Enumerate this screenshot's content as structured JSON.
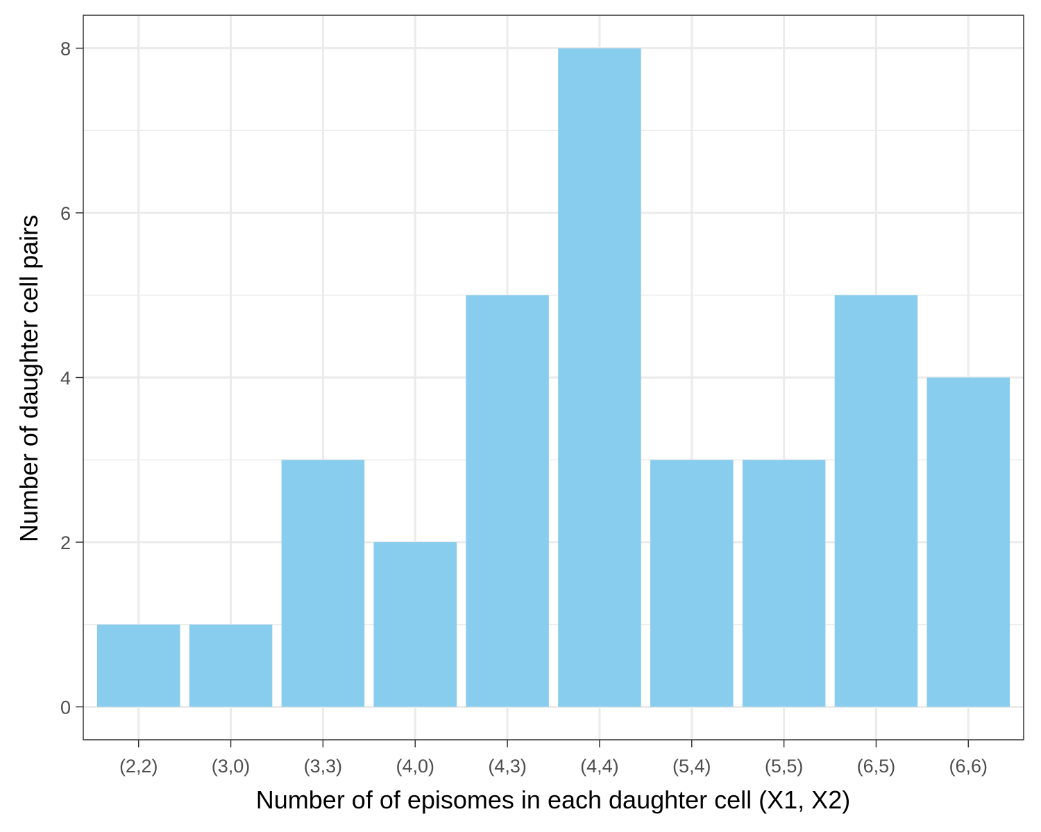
{
  "chart_data": {
    "type": "bar",
    "title": "",
    "xlabel": "Number of of episomes in each daughter cell (X1, X2)",
    "ylabel": "Number of daughter cell pairs",
    "categories": [
      "(2,2)",
      "(3,0)",
      "(3,3)",
      "(4,0)",
      "(4,3)",
      "(4,4)",
      "(5,4)",
      "(5,5)",
      "(6,5)",
      "(6,6)"
    ],
    "values": [
      1,
      1,
      3,
      2,
      5,
      8,
      3,
      3,
      5,
      4
    ],
    "ylim": [
      -0.4,
      8.4
    ],
    "yticks": [
      0,
      2,
      4,
      6,
      8
    ],
    "ytick_labels": [
      "0",
      "2",
      "4",
      "6",
      "8"
    ],
    "grid": true,
    "bar_color": "#89CDEE",
    "grid_color": "#EBEBEB",
    "panel_border_color": "#333333"
  }
}
